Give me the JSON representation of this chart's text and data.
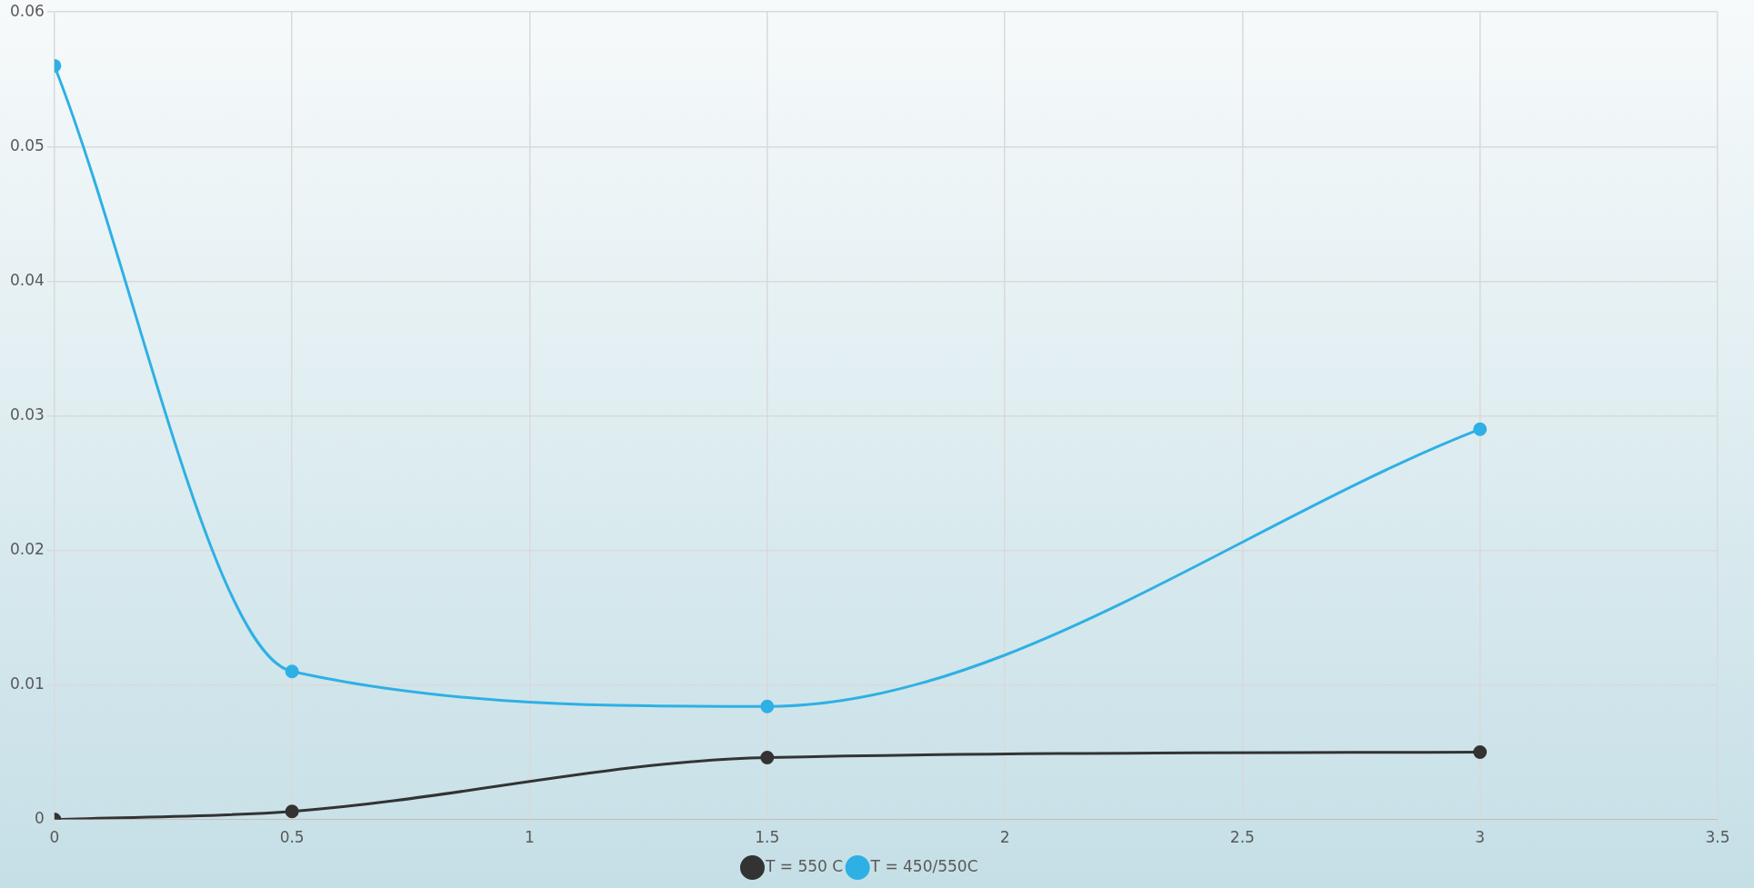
{
  "chart_data": {
    "type": "line",
    "xlim": [
      0,
      3.5
    ],
    "xticks": [
      0,
      0.5,
      1,
      1.5,
      2,
      2.5,
      3,
      3.5
    ],
    "ylim": [
      0,
      0.06
    ],
    "yticks": [
      0,
      0.01,
      0.02,
      0.03,
      0.04,
      0.05,
      0.06
    ],
    "grid": true,
    "legend": "bottom",
    "marker": "circle",
    "line_style": "solid",
    "x": [
      0,
      0.5,
      1.5,
      3
    ],
    "series": [
      {
        "name": "T = 550 C",
        "color": "#333333",
        "values": [
          0,
          0.0006,
          0.0046,
          0.005
        ]
      },
      {
        "name": "T = 450/550C",
        "color": "#2eb0e4",
        "values": [
          0.056,
          0.011,
          0.0084,
          0.029
        ]
      }
    ]
  }
}
